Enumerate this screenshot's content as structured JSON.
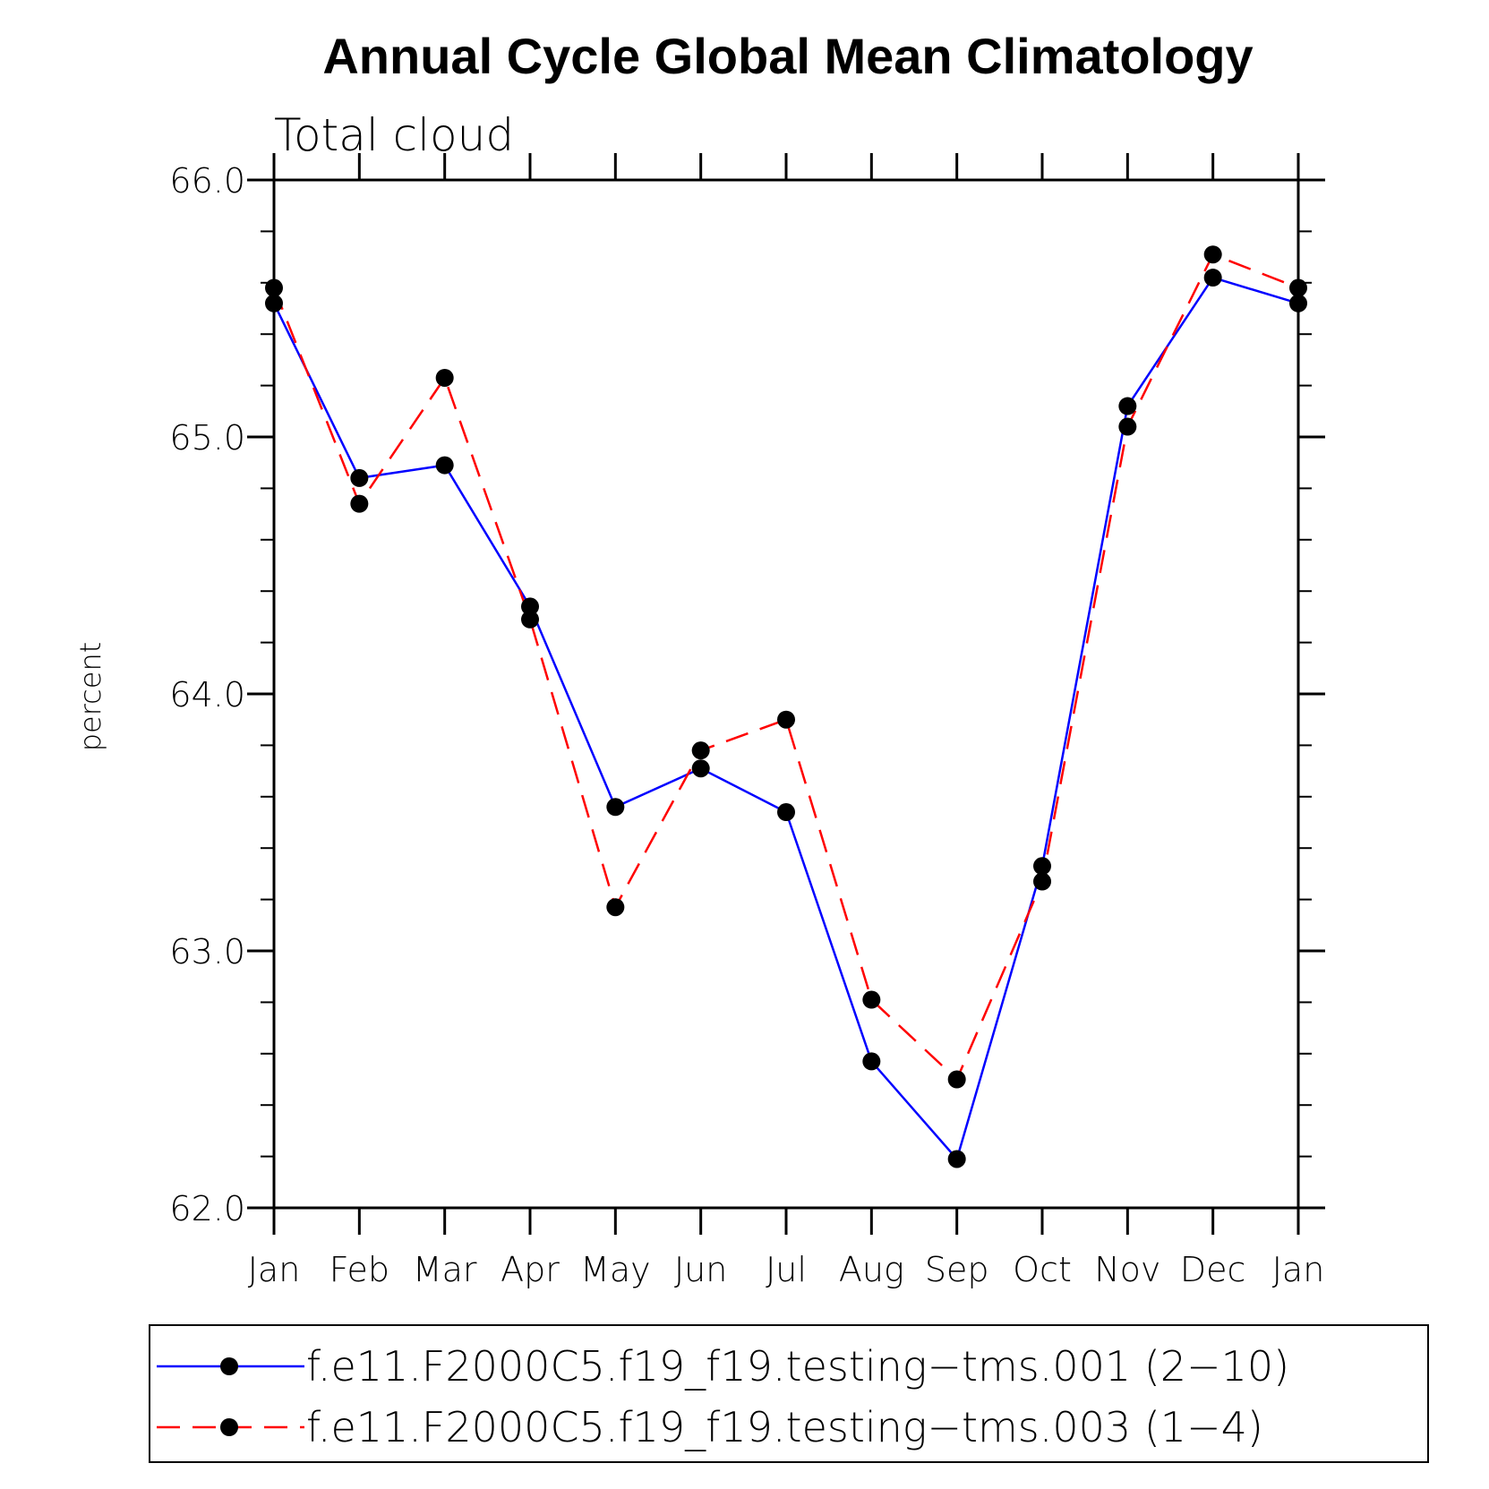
{
  "chart_data": {
    "type": "line",
    "title": "Annual Cycle Global Mean Climatology",
    "subtitle": "Total cloud",
    "xlabel": "",
    "ylabel": "percent",
    "categories": [
      "Jan",
      "Feb",
      "Mar",
      "Apr",
      "May",
      "Jun",
      "Jul",
      "Aug",
      "Sep",
      "Oct",
      "Nov",
      "Dec",
      "Jan"
    ],
    "ylim": [
      62.0,
      66.0
    ],
    "yticks": [
      "62.0",
      "63.0",
      "64.0",
      "65.0",
      "66.0"
    ],
    "series": [
      {
        "name": "f.e11.F2000C5.f19_f19.testing−tms.001 (2−10)",
        "color": "#0000ff",
        "dash": "solid",
        "marker": "filled-circle",
        "values": [
          65.52,
          64.84,
          64.89,
          64.34,
          63.56,
          63.71,
          63.54,
          62.57,
          62.19,
          63.33,
          65.12,
          65.62,
          65.52
        ]
      },
      {
        "name": "f.e11.F2000C5.f19_f19.testing−tms.003 (1−4)",
        "color": "#ff0000",
        "dash": "dashed",
        "marker": "filled-circle",
        "values": [
          65.58,
          64.74,
          65.23,
          64.29,
          63.17,
          63.78,
          63.9,
          62.81,
          62.5,
          63.27,
          65.04,
          65.71,
          65.58
        ]
      }
    ],
    "legend_position": "bottom",
    "grid": false
  }
}
